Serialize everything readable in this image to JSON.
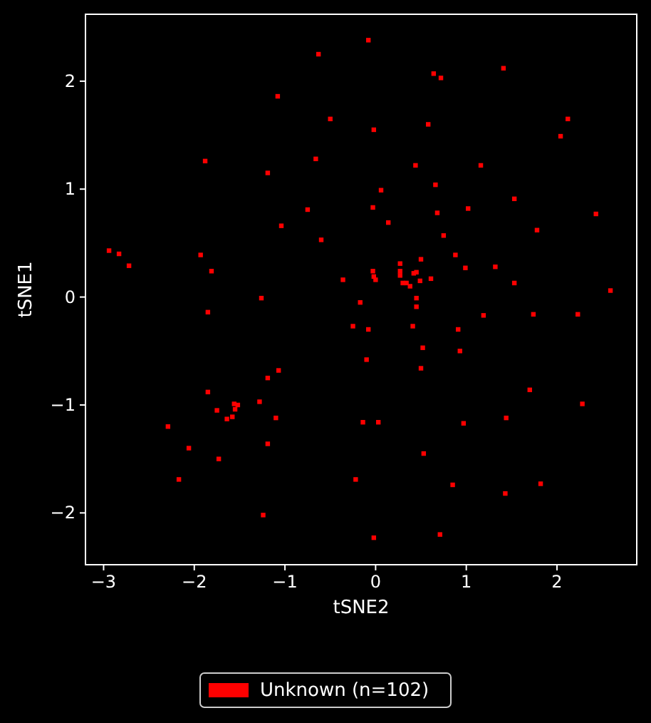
{
  "chart_data": {
    "type": "scatter",
    "xlabel": "tSNE2",
    "ylabel": "tSNE1",
    "xlim": [
      -3.2,
      2.88
    ],
    "ylim": [
      -2.48,
      2.62
    ],
    "xticks": [
      -3,
      -2,
      -1,
      0,
      1,
      2
    ],
    "yticks": [
      -2,
      -1,
      0,
      1,
      2
    ],
    "grid": false,
    "legend": "bottom",
    "marker": "square",
    "series": [
      {
        "name": "Unknown (n=102)",
        "color": "#ff0000",
        "x": [
          -0.63,
          -0.08,
          -1.08,
          -0.5,
          -0.66,
          -1.88,
          -1.19,
          -0.75,
          -1.04,
          -0.6,
          -2.94,
          -2.83,
          -2.72,
          -1.93,
          -1.81,
          -0.36,
          -1.26,
          0.64,
          0.72,
          1.41,
          2.12,
          2.04,
          -0.02,
          0.58,
          0.44,
          1.16,
          0.06,
          0.66,
          -0.03,
          0.68,
          1.02,
          1.53,
          2.43,
          1.78,
          0.14,
          0.75,
          0.5,
          0.27,
          0.27,
          0.27,
          -0.03,
          -0.02,
          0,
          0.3,
          0.34,
          0.38,
          0.42,
          0.45,
          0.61,
          0.49,
          0.99,
          1.32,
          1.53,
          0.88,
          2.59,
          0.45,
          0.45,
          -0.17,
          -0.25,
          -0.08,
          -0.1,
          -0.14,
          -0.22,
          1.19,
          1.74,
          2.23,
          0.41,
          0.91,
          0.52,
          0.93,
          0.5,
          1.7,
          2.28,
          0.03,
          0.97,
          1.44,
          0.53,
          0.85,
          1.82,
          1.43,
          -0.02,
          0.71,
          -1.85,
          -1.07,
          -1.19,
          -1.85,
          -1.56,
          -1.52,
          -1.55,
          -1.58,
          -1.64,
          -1.75,
          -1.28,
          -1.1,
          -2.29,
          -2.06,
          -1.19,
          -1.73,
          -2.17,
          -1.24
        ],
        "values": [
          2.25,
          2.38,
          1.86,
          1.65,
          1.28,
          1.26,
          1.15,
          0.81,
          0.66,
          0.53,
          0.43,
          0.4,
          0.29,
          0.39,
          0.24,
          0.16,
          -0.01,
          2.07,
          2.03,
          2.12,
          1.65,
          1.49,
          1.55,
          1.6,
          1.22,
          1.22,
          0.99,
          1.04,
          0.83,
          0.78,
          0.82,
          0.91,
          0.77,
          0.62,
          0.69,
          0.57,
          0.35,
          0.31,
          0.24,
          0.2,
          0.24,
          0.19,
          0.16,
          0.13,
          0.13,
          0.1,
          0.22,
          0.23,
          0.17,
          0.15,
          0.27,
          0.28,
          0.13,
          0.39,
          0.06,
          -0.01,
          -0.09,
          -0.05,
          -0.27,
          -0.3,
          -0.58,
          -1.16,
          -1.69,
          -0.17,
          -0.16,
          -0.16,
          -0.27,
          -0.3,
          -0.47,
          -0.5,
          -0.66,
          -0.86,
          -0.99,
          -1.16,
          -1.17,
          -1.12,
          -1.45,
          -1.74,
          -1.73,
          -1.82,
          -2.23,
          -2.2,
          -0.14,
          -0.68,
          -0.75,
          -0.88,
          -0.99,
          -1.0,
          -1.04,
          -1.11,
          -1.13,
          -1.05,
          -0.97,
          -1.12,
          -1.2,
          -1.4,
          -1.36,
          -1.5,
          -1.69,
          -2.02
        ]
      }
    ]
  }
}
